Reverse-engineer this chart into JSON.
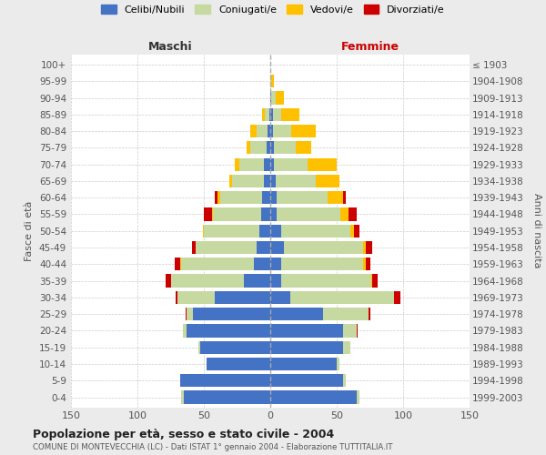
{
  "age_groups": [
    "100+",
    "95-99",
    "90-94",
    "85-89",
    "80-84",
    "75-79",
    "70-74",
    "65-69",
    "60-64",
    "55-59",
    "50-54",
    "45-49",
    "40-44",
    "35-39",
    "30-34",
    "25-29",
    "20-24",
    "15-19",
    "10-14",
    "5-9",
    "0-4"
  ],
  "birth_years": [
    "≤ 1903",
    "1904-1908",
    "1909-1913",
    "1914-1918",
    "1919-1923",
    "1924-1928",
    "1929-1933",
    "1934-1938",
    "1939-1943",
    "1944-1948",
    "1949-1953",
    "1954-1958",
    "1959-1963",
    "1964-1968",
    "1969-1973",
    "1974-1978",
    "1979-1983",
    "1984-1988",
    "1989-1993",
    "1994-1998",
    "1999-2003"
  ],
  "colors": {
    "celibe": "#4472C4",
    "coniugato": "#c5d9a0",
    "vedovo": "#ffc000",
    "divorziato": "#cc0000"
  },
  "maschi": {
    "celibe": [
      0,
      0,
      0,
      1,
      2,
      3,
      5,
      5,
      6,
      7,
      8,
      10,
      12,
      20,
      42,
      58,
      63,
      53,
      48,
      68,
      65
    ],
    "coniugato": [
      0,
      0,
      0,
      3,
      8,
      12,
      18,
      24,
      32,
      36,
      42,
      46,
      55,
      55,
      28,
      5,
      3,
      1,
      0,
      0,
      2
    ],
    "vedovo": [
      0,
      0,
      0,
      2,
      5,
      3,
      4,
      2,
      2,
      1,
      1,
      0,
      1,
      0,
      0,
      0,
      0,
      0,
      0,
      0,
      0
    ],
    "divorziato": [
      0,
      0,
      0,
      0,
      0,
      0,
      0,
      0,
      2,
      6,
      0,
      3,
      4,
      4,
      1,
      1,
      0,
      0,
      0,
      0,
      0
    ]
  },
  "femmine": {
    "nubile": [
      0,
      0,
      1,
      2,
      2,
      3,
      3,
      4,
      5,
      5,
      8,
      10,
      8,
      8,
      15,
      40,
      55,
      55,
      50,
      55,
      65
    ],
    "coniugata": [
      0,
      1,
      3,
      6,
      14,
      16,
      25,
      30,
      38,
      48,
      52,
      60,
      62,
      68,
      78,
      34,
      10,
      5,
      2,
      2,
      2
    ],
    "vedova": [
      0,
      2,
      6,
      14,
      18,
      12,
      22,
      18,
      12,
      6,
      3,
      2,
      2,
      1,
      0,
      0,
      0,
      0,
      0,
      0,
      0
    ],
    "divorziata": [
      0,
      0,
      0,
      0,
      0,
      0,
      0,
      0,
      2,
      6,
      4,
      5,
      3,
      4,
      5,
      1,
      1,
      0,
      0,
      0,
      0
    ]
  },
  "title": "Popolazione per età, sesso e stato civile - 2004",
  "subtitle": "COMUNE DI MONTEVECCHIA (LC) - Dati ISTAT 1° gennaio 2004 - Elaborazione TUTTITALIA.IT",
  "label_maschi": "Maschi",
  "label_femmine": "Femmine",
  "ylabel_left": "Fasce di età",
  "ylabel_right": "Anni di nascita",
  "xlim": 150,
  "legend_labels": [
    "Celibi/Nubili",
    "Coniugati/e",
    "Vedovi/e",
    "Divorziati/e"
  ],
  "bg_color": "#ebebeb",
  "plot_bg_color": "#ffffff"
}
